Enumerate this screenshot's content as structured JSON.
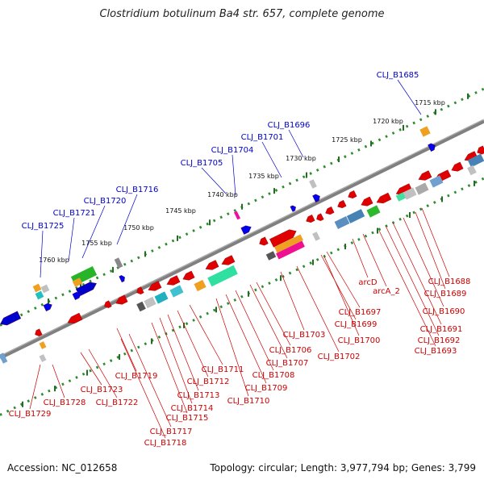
{
  "title": "Clostridium botulinum Ba4 str. 657, complete genome",
  "footer": {
    "accession_label": "Accession:",
    "accession": "NC_012658",
    "topology_label": "Topology:",
    "topology": "circular",
    "length_label": "Length:",
    "length": "3,977,794 bp",
    "genes_label": "Genes:",
    "genes": "3,799"
  },
  "scale_ticks": [
    "1715 kbp",
    "1720 kbp",
    "1725 kbp",
    "1730 kbp",
    "1735 kbp",
    "1740 kbp",
    "1745 kbp",
    "1750 kbp",
    "1755 kbp",
    "1760 kbp"
  ],
  "upper_gene_labels": [
    "CLJ_B1685",
    "CLJ_B1696",
    "CLJ_B1701",
    "CLJ_B1704",
    "CLJ_B1705",
    "CLJ_B1716",
    "CLJ_B1720",
    "CLJ_B1721",
    "CLJ_B1725"
  ],
  "lower_gene_labels": [
    "CLJ_B1688",
    "CLJ_B1689",
    "CLJ_B1690",
    "CLJ_B1691",
    "CLJ_B1692",
    "CLJ_B1693",
    "arcD",
    "arcA_2",
    "CLJ_B1697",
    "CLJ_B1699",
    "CLJ_B1700",
    "CLJ_B1702",
    "CLJ_B1703",
    "CLJ_B1706",
    "CLJ_B1707",
    "CLJ_B1708",
    "CLJ_B1709",
    "CLJ_B1710",
    "CLJ_B1711",
    "CLJ_B1712",
    "CLJ_B1713",
    "CLJ_B1714",
    "CLJ_B1715",
    "CLJ_B1717",
    "CLJ_B1718",
    "CLJ_B1719",
    "CLJ_B1722",
    "CLJ_B1723",
    "CLJ_B1728",
    "CLJ_B1729"
  ],
  "colors": {
    "forward_label": "#0000cc",
    "reverse_label": "#cc0000",
    "backbone": "#808080",
    "scale": "#2e8b2e",
    "gene_red": "#ee0000",
    "gene_blue": "#0000ee"
  }
}
